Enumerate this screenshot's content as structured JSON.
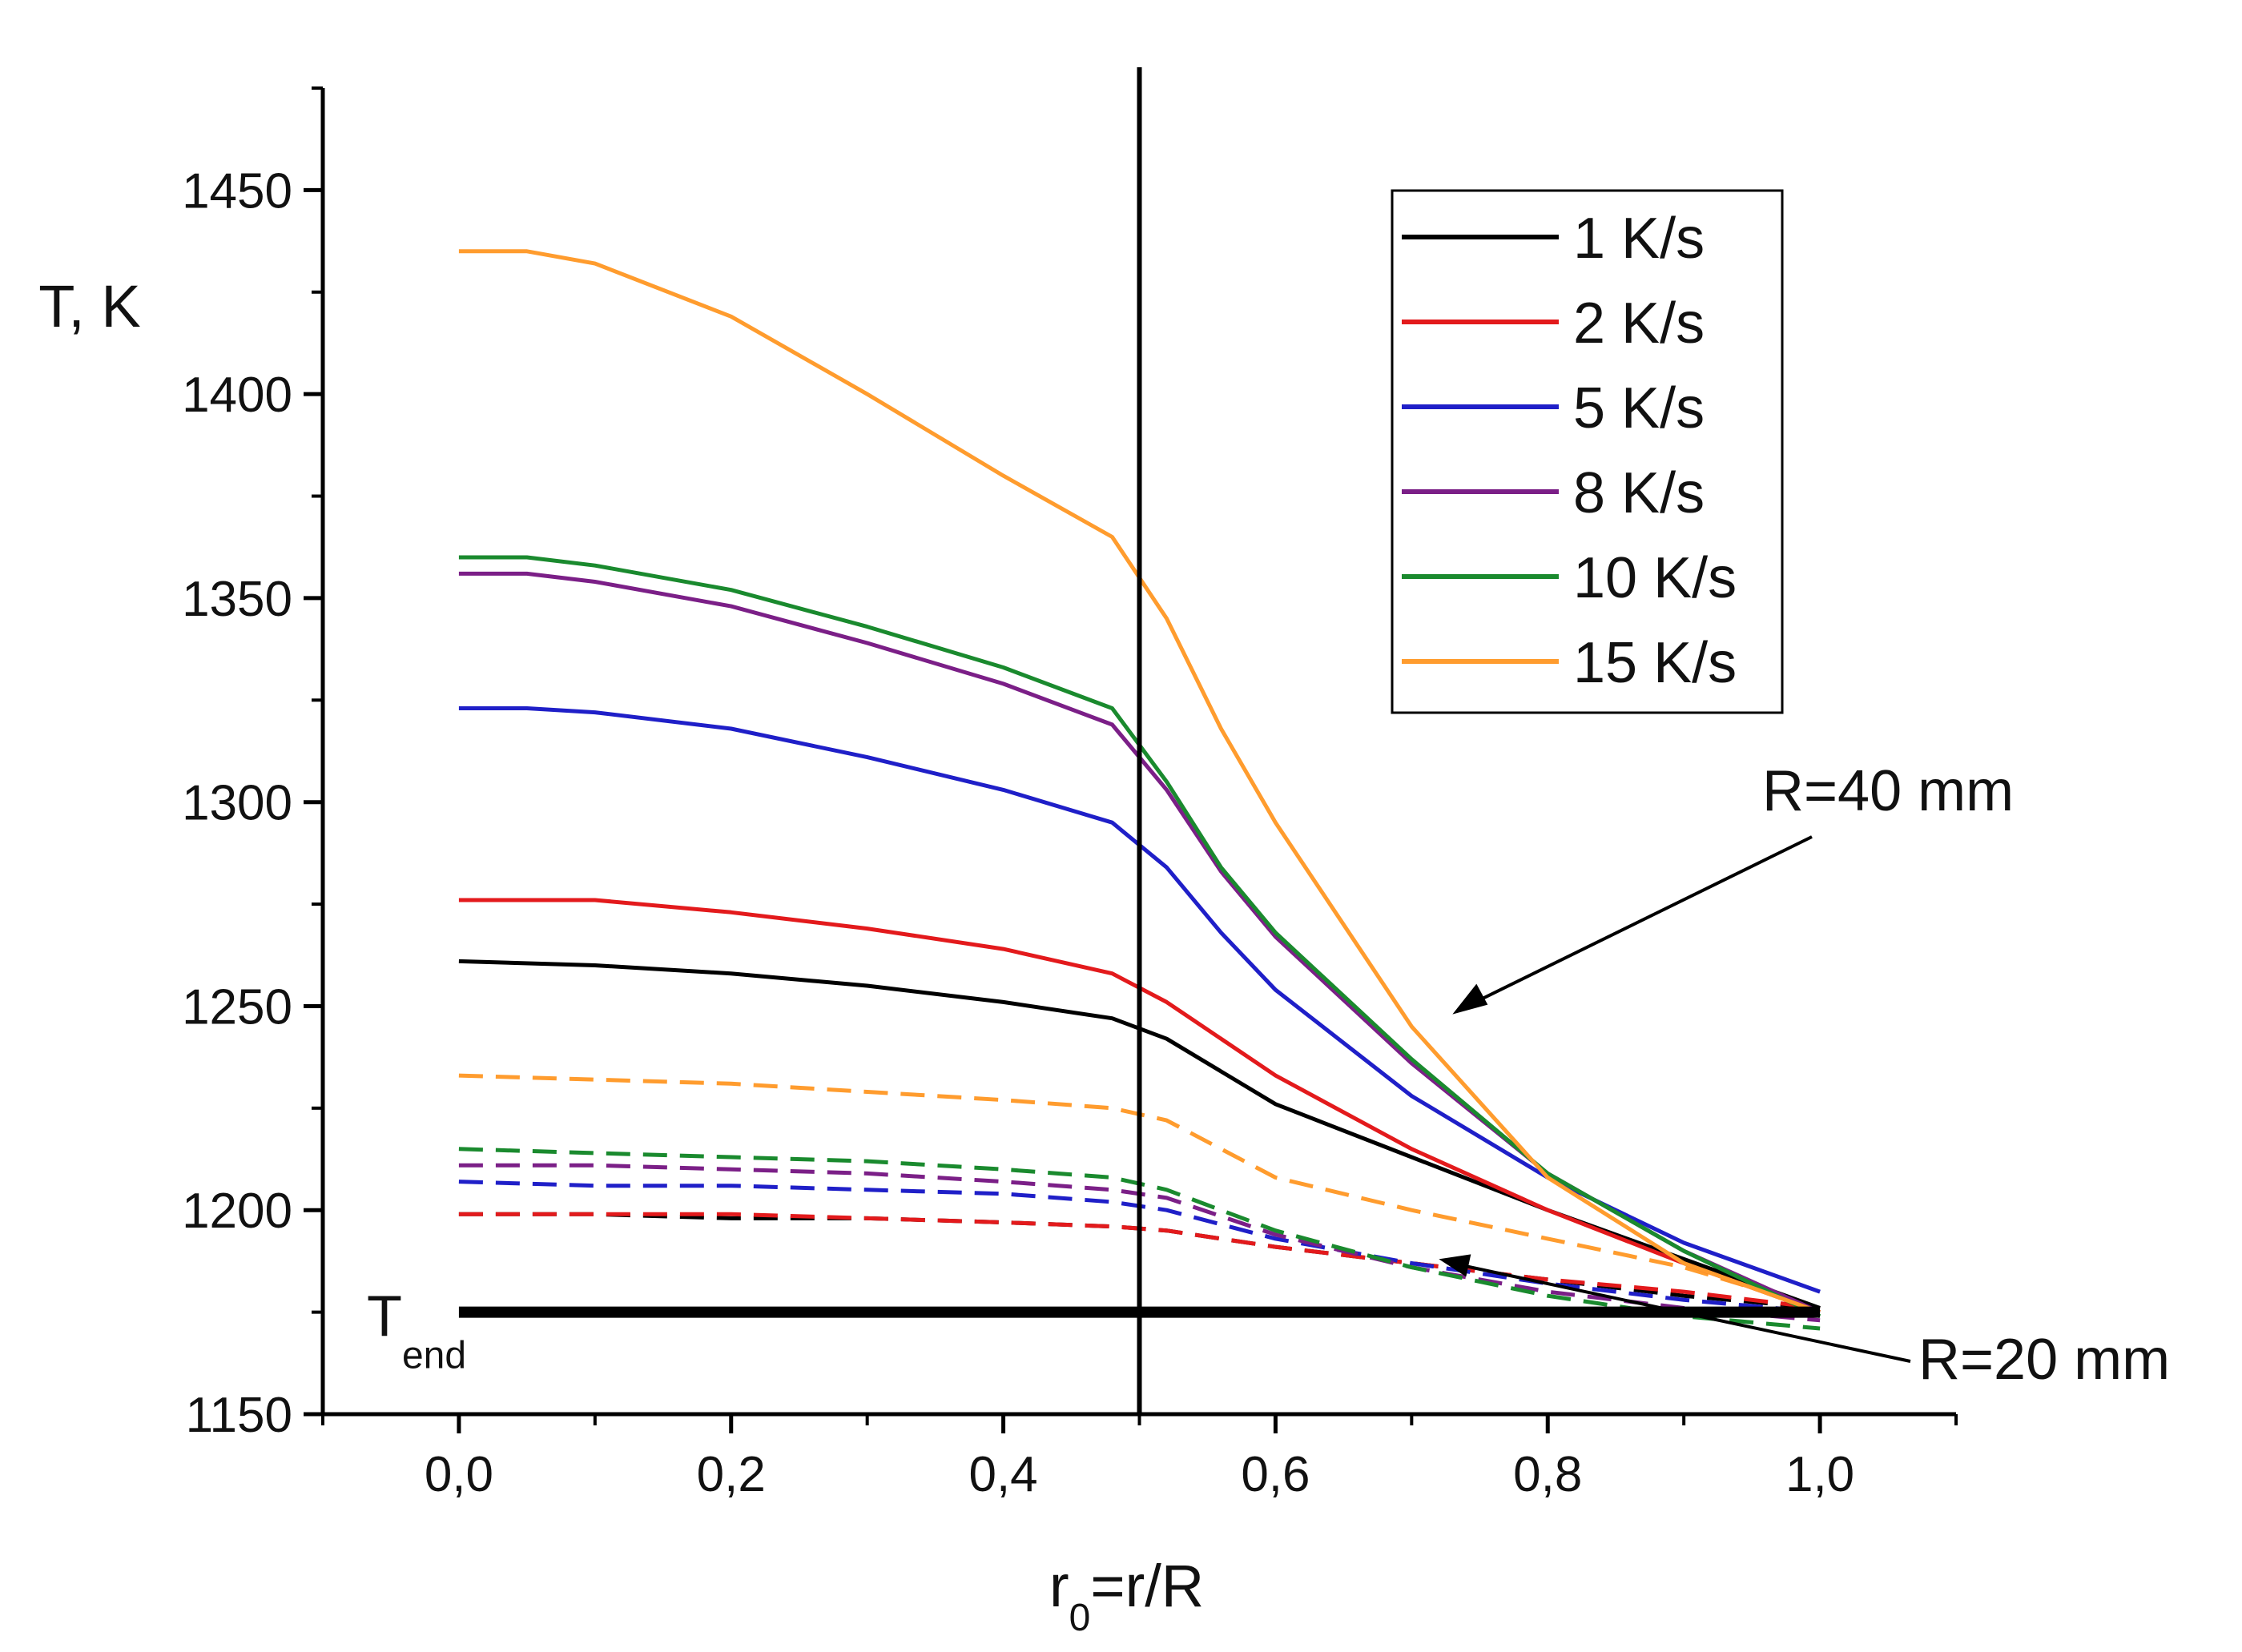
{
  "chart_data": {
    "type": "line",
    "title": "",
    "xlabel_main": "r",
    "xlabel_sub": "0",
    "xlabel_rest": "=r/R",
    "ylabel": "T, K",
    "xlim": [
      -0.1,
      1.1
    ],
    "ylim": [
      1150,
      1475
    ],
    "x_ticks": [
      0.0,
      0.2,
      0.4,
      0.6,
      0.8,
      1.0
    ],
    "x_tick_labels": [
      "0,0",
      "0,2",
      "0,4",
      "0,6",
      "0,8",
      "1,0"
    ],
    "y_ticks": [
      1150,
      1200,
      1250,
      1300,
      1350,
      1400,
      1450
    ],
    "y_tick_labels": [
      "1150",
      "1200",
      "1250",
      "1300",
      "1350",
      "1400",
      "1450"
    ],
    "vertical_line_x": 0.5,
    "t_end": {
      "value": 1175,
      "label_main": "T",
      "label_sub": "end",
      "x_range": [
        0.0,
        1.0
      ]
    },
    "legend": {
      "position": "top-right",
      "entries": [
        "1 K/s",
        "2 K/s",
        "5 K/s",
        "8 K/s",
        "10 K/s",
        "15 K/s"
      ]
    },
    "annotations": [
      {
        "text": "R=40 mm",
        "points_to_x": 0.73,
        "points_to_y": 1248
      },
      {
        "text": "R=20 mm",
        "points_to_x": 0.72,
        "points_to_y": 1188
      }
    ],
    "groups": [
      {
        "name": "R=40 mm",
        "dash": "solid",
        "series": [
          {
            "name": "1 K/s",
            "color": "#000000",
            "x": [
              0.0,
              0.1,
              0.2,
              0.3,
              0.4,
              0.48,
              0.52,
              0.6,
              0.7,
              0.8,
              0.9,
              1.0
            ],
            "y": [
              1261,
              1260,
              1258,
              1255,
              1251,
              1247,
              1242,
              1226,
              1213,
              1200,
              1188,
              1176
            ]
          },
          {
            "name": "2 K/s",
            "color": "#e31a1c",
            "x": [
              0.0,
              0.1,
              0.2,
              0.3,
              0.4,
              0.48,
              0.52,
              0.6,
              0.7,
              0.8,
              0.9,
              1.0
            ],
            "y": [
              1276,
              1276,
              1273,
              1269,
              1264,
              1258,
              1251,
              1233,
              1215,
              1200,
              1187,
              1175
            ]
          },
          {
            "name": "5 K/s",
            "color": "#1f1fc8",
            "x": [
              0.0,
              0.05,
              0.1,
              0.2,
              0.3,
              0.4,
              0.48,
              0.52,
              0.56,
              0.6,
              0.7,
              0.8,
              0.9,
              1.0
            ],
            "y": [
              1323,
              1323,
              1322,
              1318,
              1311,
              1303,
              1295,
              1284,
              1268,
              1254,
              1228,
              1208,
              1192,
              1180
            ]
          },
          {
            "name": "8 K/s",
            "color": "#7b1f87",
            "x": [
              0.0,
              0.05,
              0.1,
              0.2,
              0.3,
              0.4,
              0.48,
              0.52,
              0.56,
              0.6,
              0.7,
              0.8,
              0.9,
              1.0
            ],
            "y": [
              1356,
              1356,
              1354,
              1348,
              1339,
              1329,
              1319,
              1303,
              1283,
              1267,
              1236,
              1209,
              1190,
              1175
            ]
          },
          {
            "name": "10 K/s",
            "color": "#1a8a2e",
            "x": [
              0.0,
              0.05,
              0.1,
              0.2,
              0.3,
              0.4,
              0.48,
              0.52,
              0.56,
              0.6,
              0.7,
              0.8,
              0.9,
              1.0
            ],
            "y": [
              1360,
              1360,
              1358,
              1352,
              1343,
              1333,
              1323,
              1305,
              1284,
              1268,
              1237,
              1209,
              1190,
              1174
            ]
          },
          {
            "name": "15 K/s",
            "color": "#ff9c2e",
            "x": [
              0.0,
              0.05,
              0.1,
              0.2,
              0.3,
              0.4,
              0.48,
              0.52,
              0.56,
              0.6,
              0.7,
              0.8,
              0.9,
              1.0
            ],
            "y": [
              1435,
              1435,
              1432,
              1419,
              1400,
              1380,
              1365,
              1345,
              1318,
              1295,
              1245,
              1208,
              1187,
              1175
            ]
          }
        ]
      },
      {
        "name": "R=20 mm",
        "dash": "dashed",
        "series": [
          {
            "name": "1 K/s",
            "color": "#000000",
            "x": [
              0.0,
              0.1,
              0.2,
              0.3,
              0.4,
              0.48,
              0.52,
              0.6,
              0.7,
              0.8,
              0.9,
              1.0
            ],
            "y": [
              1199,
              1199,
              1198,
              1198,
              1197,
              1196,
              1195,
              1191,
              1187,
              1183,
              1179,
              1176
            ]
          },
          {
            "name": "2 K/s",
            "color": "#e31a1c",
            "x": [
              0.0,
              0.1,
              0.2,
              0.3,
              0.4,
              0.48,
              0.52,
              0.6,
              0.7,
              0.8,
              0.9,
              1.0
            ],
            "y": [
              1199,
              1199,
              1199,
              1198,
              1197,
              1196,
              1195,
              1191,
              1187,
              1183,
              1180,
              1176
            ]
          },
          {
            "name": "5 K/s",
            "color": "#1f1fc8",
            "x": [
              0.0,
              0.1,
              0.2,
              0.3,
              0.4,
              0.48,
              0.52,
              0.6,
              0.7,
              0.8,
              0.9,
              1.0
            ],
            "y": [
              1207,
              1206,
              1206,
              1205,
              1204,
              1202,
              1200,
              1193,
              1187,
              1182,
              1178,
              1175
            ]
          },
          {
            "name": "8 K/s",
            "color": "#7b1f87",
            "x": [
              0.0,
              0.1,
              0.2,
              0.3,
              0.4,
              0.48,
              0.52,
              0.6,
              0.7,
              0.8,
              0.9,
              1.0
            ],
            "y": [
              1211,
              1211,
              1210,
              1209,
              1207,
              1205,
              1203,
              1194,
              1186,
              1180,
              1176,
              1173
            ]
          },
          {
            "name": "10 K/s",
            "color": "#1a8a2e",
            "x": [
              0.0,
              0.1,
              0.2,
              0.3,
              0.4,
              0.48,
              0.52,
              0.6,
              0.7,
              0.8,
              0.9,
              1.0
            ],
            "y": [
              1215,
              1214,
              1213,
              1212,
              1210,
              1208,
              1205,
              1195,
              1186,
              1179,
              1174,
              1171
            ]
          },
          {
            "name": "15 K/s",
            "color": "#ff9c2e",
            "x": [
              0.0,
              0.1,
              0.2,
              0.3,
              0.4,
              0.48,
              0.52,
              0.6,
              0.7,
              0.8,
              0.9,
              1.0
            ],
            "y": [
              1233,
              1232,
              1231,
              1229,
              1227,
              1225,
              1222,
              1208,
              1200,
              1193,
              1186,
              1176
            ]
          }
        ]
      }
    ]
  }
}
